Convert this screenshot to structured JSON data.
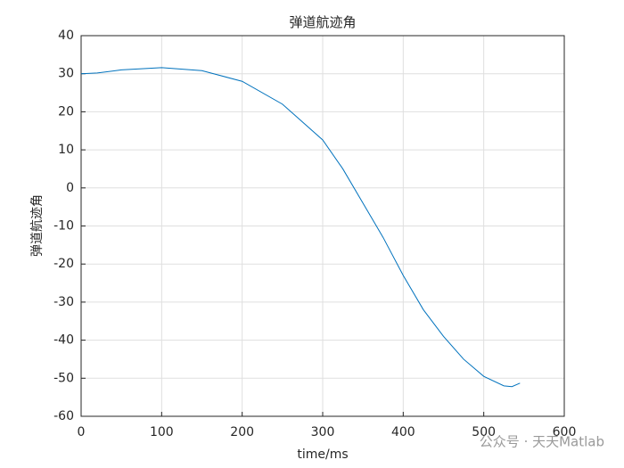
{
  "chart_data": {
    "type": "line",
    "title": "弹道航迹角",
    "x_label": "time/ms",
    "y_label": "弹道航迹角",
    "watermark": "公众号 · 天天Matlab",
    "x": [
      0,
      20,
      50,
      100,
      150,
      200,
      250,
      300,
      325,
      350,
      375,
      400,
      425,
      450,
      475,
      500,
      525,
      535,
      545
    ],
    "series": [
      {
        "name": "弹道航迹角",
        "color": "#0072bd",
        "values": [
          30,
          30.2,
          31,
          31.6,
          30.8,
          28,
          22,
          12.6,
          5,
          -4,
          -13,
          -23,
          -32,
          -39,
          -45,
          -49.5,
          -52,
          -52.2,
          -51.3
        ]
      }
    ],
    "xlim": [
      0,
      600
    ],
    "xticks": [
      0,
      100,
      200,
      300,
      400,
      500,
      600
    ],
    "ylim": [
      -60,
      40
    ],
    "yticks": [
      -60,
      -50,
      -40,
      -30,
      -20,
      -10,
      0,
      10,
      20,
      30,
      40
    ],
    "grid": true
  }
}
